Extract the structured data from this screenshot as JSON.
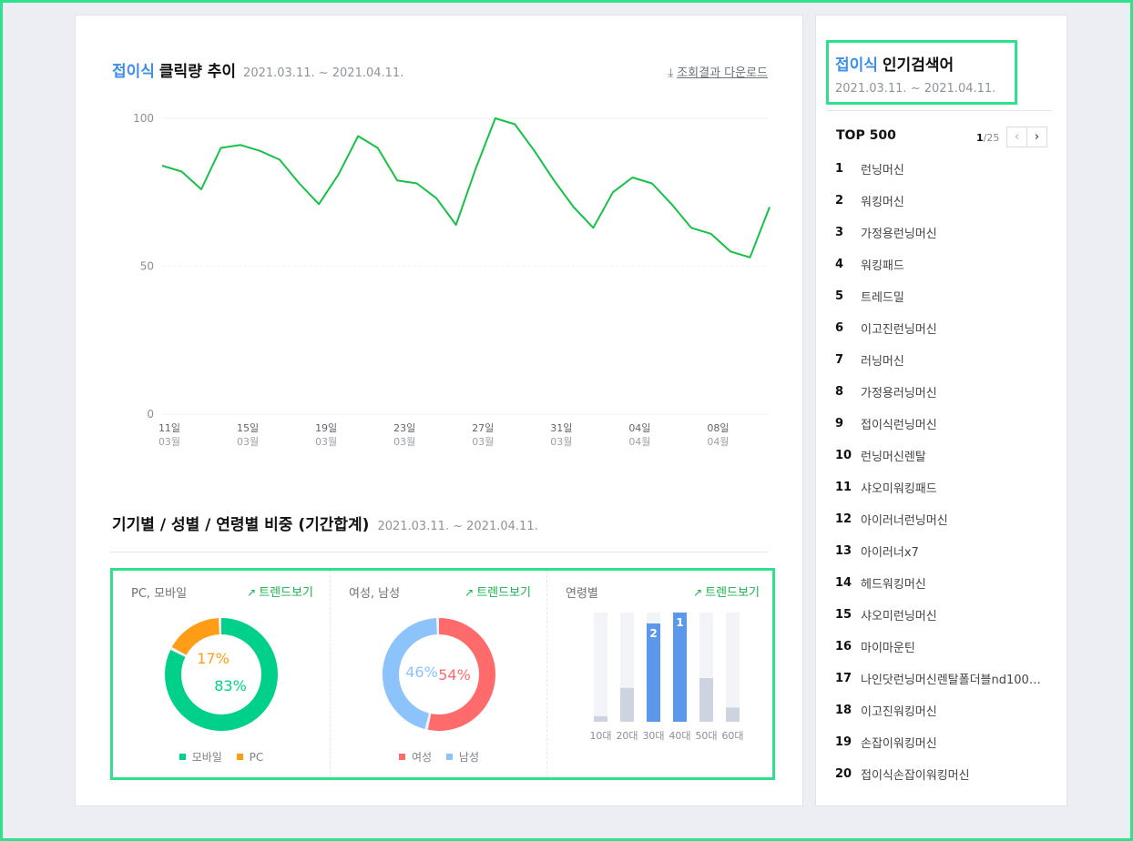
{
  "trend": {
    "title_accent": "접이식",
    "title_main": "클릭량 추이",
    "period": "2021.03.11. ~ 2021.04.11.",
    "download_label": "조회결과 다운로드",
    "download_icon": "download-arrow-icon"
  },
  "chart_data": [
    {
      "type": "line",
      "title": "",
      "x": [
        "03-11",
        "03-12",
        "03-13",
        "03-14",
        "03-15",
        "03-16",
        "03-17",
        "03-18",
        "03-19",
        "03-20",
        "03-21",
        "03-22",
        "03-23",
        "03-24",
        "03-25",
        "03-26",
        "03-27",
        "03-28",
        "03-29",
        "03-30",
        "03-31",
        "04-01",
        "04-02",
        "04-03",
        "04-04",
        "04-05",
        "04-06",
        "04-07",
        "04-08",
        "04-09",
        "04-10",
        "04-11"
      ],
      "series": [
        {
          "values": [
            84,
            82,
            76,
            90,
            91,
            89,
            86,
            78,
            71,
            81,
            94,
            90,
            79,
            78,
            73,
            64,
            83,
            100,
            98,
            89,
            79,
            70,
            63,
            75,
            80,
            78,
            71,
            63,
            61,
            55,
            53,
            70
          ],
          "color": "#17c046"
        }
      ],
      "ylim": [
        0,
        100
      ],
      "yticks": [
        "0",
        "50",
        "100"
      ],
      "xtick_days": [
        "11일",
        "15일",
        "19일",
        "23일",
        "27일",
        "31일",
        "04일",
        "08일"
      ],
      "xtick_months": [
        "03월",
        "03월",
        "03월",
        "03월",
        "03월",
        "03월",
        "04월",
        "04월"
      ],
      "grid": true
    },
    {
      "type": "pie",
      "title": "PC, 모바일",
      "categories": [
        "모바일",
        "PC"
      ],
      "values": [
        83,
        17
      ],
      "labels": [
        "83%",
        "17%"
      ],
      "colors": [
        "#00d08a",
        "#ff9e16"
      ]
    },
    {
      "type": "pie",
      "title": "여성, 남성",
      "categories": [
        "여성",
        "남성"
      ],
      "values": [
        54,
        46
      ],
      "labels": [
        "54%",
        "46%"
      ],
      "colors": [
        "#ff6b6b",
        "#8cc3fb"
      ]
    },
    {
      "type": "bar",
      "title": "연령별",
      "categories": [
        "10대",
        "20대",
        "30대",
        "40대",
        "50대",
        "60대"
      ],
      "values": [
        5,
        31,
        90,
        100,
        40,
        13
      ],
      "rank_labels": [
        "",
        "",
        "2",
        "1",
        "",
        ""
      ],
      "ylim": [
        0,
        100
      ],
      "colors": {
        "highlight": "#5b97ea",
        "normal": "#cdd3df",
        "track": "#f3f4f7"
      }
    }
  ],
  "ratio": {
    "title": "기기별 / 성별 / 연령별 비중 (기간합계)",
    "period": "2021.03.11. ~ 2021.04.11.",
    "trend_label": "트렌드보기",
    "trend_icon": "trend-chart-icon",
    "device": {
      "title": "PC, 모바일",
      "legend": [
        "모바일",
        "PC"
      ]
    },
    "gender": {
      "title": "여성, 남성",
      "legend": [
        "여성",
        "남성"
      ]
    },
    "age": {
      "title": "연령별"
    }
  },
  "popular": {
    "title_accent": "접이식",
    "title_main": "인기검색어",
    "period": "2021.03.11. ~ 2021.04.11.",
    "top_label": "TOP 500",
    "page_current": "1",
    "page_total": "/25",
    "prev_icon": "chevron-left-icon",
    "next_icon": "chevron-right-icon",
    "items": [
      {
        "rank": "1",
        "keyword": "런닝머신"
      },
      {
        "rank": "2",
        "keyword": "워킹머신"
      },
      {
        "rank": "3",
        "keyword": "가정용런닝머신"
      },
      {
        "rank": "4",
        "keyword": "워킹패드"
      },
      {
        "rank": "5",
        "keyword": "트레드밀"
      },
      {
        "rank": "6",
        "keyword": "이고진런닝머신"
      },
      {
        "rank": "7",
        "keyword": "러닝머신"
      },
      {
        "rank": "8",
        "keyword": "가정용러닝머신"
      },
      {
        "rank": "9",
        "keyword": "접이식런닝머신"
      },
      {
        "rank": "10",
        "keyword": "런닝머신렌탈"
      },
      {
        "rank": "11",
        "keyword": "샤오미워킹패드"
      },
      {
        "rank": "12",
        "keyword": "아이러너런닝머신"
      },
      {
        "rank": "13",
        "keyword": "아이러너x7"
      },
      {
        "rank": "14",
        "keyword": "헤드워킹머신"
      },
      {
        "rank": "15",
        "keyword": "샤오미런닝머신"
      },
      {
        "rank": "16",
        "keyword": "마이마운틴"
      },
      {
        "rank": "17",
        "keyword": "나인닷런닝머신렌탈폴더블nd100…"
      },
      {
        "rank": "18",
        "keyword": "이고진워킹머신"
      },
      {
        "rank": "19",
        "keyword": "손잡이워킹머신"
      },
      {
        "rank": "20",
        "keyword": "접이식손잡이워킹머신"
      }
    ]
  }
}
